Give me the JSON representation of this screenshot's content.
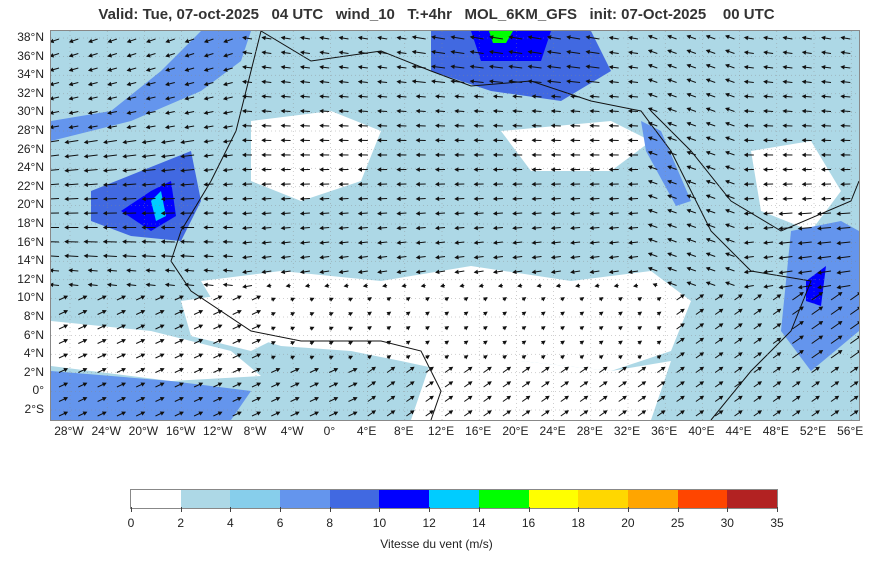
{
  "header": {
    "title": "Valid: Tue, 07-oct-2025   04 UTC   wind_10   T:+4hr   MOL_6KM_GFS   init: 07-Oct-2025    00 UTC"
  },
  "map": {
    "lat_labels": [
      "38°N",
      "36°N",
      "34°N",
      "32°N",
      "30°N",
      "28°N",
      "26°N",
      "24°N",
      "22°N",
      "20°N",
      "18°N",
      "16°N",
      "14°N",
      "12°N",
      "10°N",
      "8°N",
      "6°N",
      "4°N",
      "2°N",
      "0°",
      "2°S"
    ],
    "lon_labels": [
      "28°W",
      "24°W",
      "20°W",
      "16°W",
      "12°W",
      "8°W",
      "4°W",
      "0°",
      "4°E",
      "8°E",
      "12°E",
      "16°E",
      "20°E",
      "24°E",
      "28°E",
      "32°E",
      "36°E",
      "40°E",
      "44°E",
      "48°E",
      "52°E",
      "56°E"
    ]
  },
  "legend": {
    "ticks": [
      "0",
      "2",
      "4",
      "6",
      "8",
      "10",
      "12",
      "14",
      "16",
      "18",
      "20",
      "25",
      "30",
      "35"
    ],
    "colors": [
      "#ffffff",
      "#add8e6",
      "#87ceeb",
      "#6495ed",
      "#4169e1",
      "#0000ff",
      "#00ccff",
      "#00ff00",
      "#ffff00",
      "#ffd700",
      "#ffa500",
      "#ff4500",
      "#b22222"
    ],
    "label": "Vitesse du vent (m/s)"
  }
}
